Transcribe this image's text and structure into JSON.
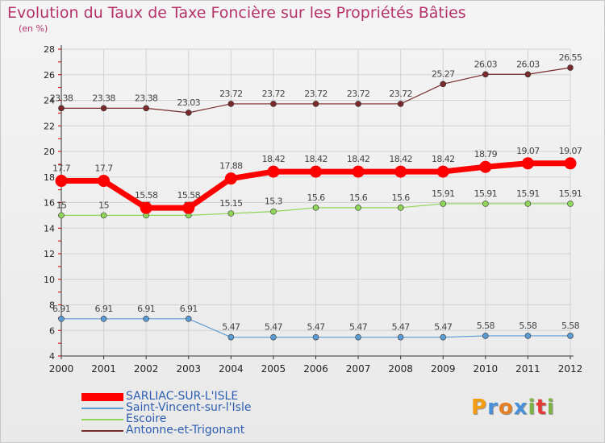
{
  "header": {
    "title": "Evolution du Taux de Taxe Foncière sur les Propriétés Bâties",
    "unit": "(en %)"
  },
  "chart_data": {
    "type": "line",
    "title": "Evolution du Taux de Taxe Foncière sur les Propriétés Bâties",
    "ylabel": "(en %)",
    "xlabel": "",
    "categories": [
      "2000",
      "2001",
      "2002",
      "2003",
      "2004",
      "2005",
      "2006",
      "2007",
      "2008",
      "2009",
      "2010",
      "2011",
      "2012"
    ],
    "ylim": [
      4,
      28
    ],
    "yticks": [
      4,
      6,
      8,
      10,
      12,
      14,
      16,
      18,
      20,
      22,
      24,
      26,
      28
    ],
    "grid": true,
    "legend_position": "bottom-left",
    "series": [
      {
        "name": "SARLIAC-SUR-L'ISLE",
        "color": "#ff0000",
        "values": [
          17.7,
          17.7,
          15.58,
          15.58,
          17.88,
          18.42,
          18.42,
          18.42,
          18.42,
          18.42,
          18.79,
          19.07,
          19.07
        ],
        "labels": [
          "17.7",
          "17.7",
          "15.58",
          "15.58",
          "17.88",
          "18.42",
          "18.42",
          "18.42",
          "18.42",
          "18.42",
          "18.79",
          "19.07",
          "19.07"
        ]
      },
      {
        "name": "Saint-Vincent-sur-l'Isle",
        "color": "#5b9bd5",
        "values": [
          6.91,
          6.91,
          6.91,
          6.91,
          5.47,
          5.47,
          5.47,
          5.47,
          5.47,
          5.47,
          5.58,
          5.58,
          5.58
        ],
        "labels": [
          "6.91",
          "6.91",
          "6.91",
          "6.91",
          "5.47",
          "5.47",
          "5.47",
          "5.47",
          "5.47",
          "5.47",
          "5.58",
          "5.58",
          "5.58"
        ]
      },
      {
        "name": "Escoire",
        "color": "#8fd65a",
        "values": [
          15,
          15,
          15,
          15,
          15.15,
          15.3,
          15.6,
          15.6,
          15.6,
          15.91,
          15.91,
          15.91,
          15.91
        ],
        "labels": [
          "15",
          "15",
          "15",
          "15",
          "15.15",
          "15.3",
          "15.6",
          "15.6",
          "15.6",
          "15.91",
          "15.91",
          "15.91",
          "15.91"
        ]
      },
      {
        "name": "Antonne-et-Trigonant",
        "color": "#7a2a2a",
        "values": [
          23.38,
          23.38,
          23.38,
          23.03,
          23.72,
          23.72,
          23.72,
          23.72,
          23.72,
          25.27,
          26.03,
          26.03,
          26.55
        ],
        "labels": [
          "23.38",
          "23.38",
          "23.38",
          "23.03",
          "23.72",
          "23.72",
          "23.72",
          "23.72",
          "23.72",
          "25.27",
          "26.03",
          "26.03",
          "26.55"
        ]
      }
    ]
  },
  "logo": {
    "letters": [
      "P",
      "r",
      "o",
      "x",
      "i",
      "t",
      "i"
    ]
  },
  "colors": {
    "title": "#b5336a",
    "grid": "#d2d2d2",
    "axis": "#333333",
    "tick_label": "#222222",
    "data_label": "#444444",
    "legend_text": "#2d5db0",
    "logo": [
      "#f39c12",
      "#4a90d9",
      "#e67e22",
      "#4a90d9",
      "#7cb342",
      "#e53935",
      "#7cb342"
    ]
  }
}
